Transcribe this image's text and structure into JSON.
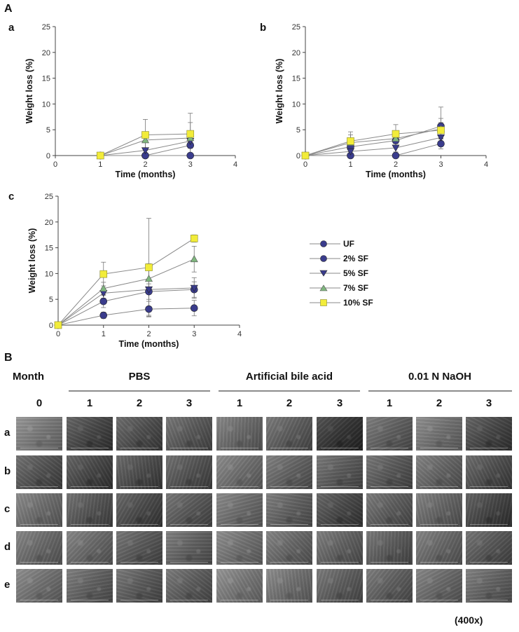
{
  "panel_A_label": "A",
  "panel_B_label": "B",
  "chart_data": [
    {
      "id": "a",
      "type": "line",
      "panel_label": "a",
      "xlabel": "Time (months)",
      "ylabel": "Weight loss (%)",
      "xlim": [
        0,
        4
      ],
      "ylim": [
        0,
        25
      ],
      "xticks": [
        "0",
        "1",
        "2",
        "3",
        "4"
      ],
      "yticks": [
        "0",
        "5",
        "10",
        "15",
        "20",
        "25"
      ],
      "x": [
        1,
        2,
        3
      ],
      "series": [
        {
          "name": "UF",
          "values": [
            0,
            0,
            0
          ],
          "err": [
            0,
            0,
            0
          ]
        },
        {
          "name": "2% SF",
          "values": [
            0,
            0,
            2.0
          ],
          "err": [
            0,
            0,
            0.6
          ]
        },
        {
          "name": "5% SF",
          "values": [
            0,
            1.0,
            2.8
          ],
          "err": [
            0,
            0.5,
            0.8
          ]
        },
        {
          "name": "7% SF",
          "values": [
            0,
            3.0,
            3.4
          ],
          "err": [
            0,
            1.5,
            3.0
          ]
        },
        {
          "name": "10% SF",
          "values": [
            0,
            4.0,
            4.2
          ],
          "err": [
            0,
            3.0,
            4.0
          ]
        }
      ]
    },
    {
      "id": "b",
      "type": "line",
      "panel_label": "b",
      "xlabel": "Time (months)",
      "ylabel": "Weight loss (%)",
      "xlim": [
        0,
        4
      ],
      "ylim": [
        0,
        25
      ],
      "xticks": [
        "0",
        "1",
        "2",
        "3",
        "4"
      ],
      "yticks": [
        "0",
        "5",
        "10",
        "15",
        "20",
        "25"
      ],
      "x": [
        0,
        1,
        2,
        3
      ],
      "series": [
        {
          "name": "UF",
          "values": [
            0,
            0,
            0,
            2.3
          ],
          "err": [
            0,
            0,
            0,
            1.0
          ]
        },
        {
          "name": "2% SF",
          "values": [
            0,
            1.7,
            2.9,
            5.7
          ],
          "err": [
            0,
            0.8,
            1.0,
            3.7
          ]
        },
        {
          "name": "5% SF",
          "values": [
            0,
            0.8,
            1.5,
            3.5
          ],
          "err": [
            0,
            0.5,
            0.8,
            1.2
          ]
        },
        {
          "name": "7% SF",
          "values": [
            0,
            2.5,
            3.3,
            5.2
          ],
          "err": [
            0,
            1.5,
            1.5,
            2.0
          ]
        },
        {
          "name": "10% SF",
          "values": [
            0,
            2.8,
            4.2,
            4.9
          ],
          "err": [
            0,
            1.8,
            1.8,
            1.5
          ]
        }
      ]
    },
    {
      "id": "c",
      "type": "line",
      "panel_label": "c",
      "xlabel": "Time (months)",
      "ylabel": "Weight loss (%)",
      "xlim": [
        0,
        4
      ],
      "ylim": [
        0,
        25
      ],
      "xticks": [
        "0",
        "1",
        "2",
        "3",
        "4"
      ],
      "yticks": [
        "0",
        "5",
        "10",
        "15",
        "20",
        "25"
      ],
      "x": [
        0,
        1,
        2,
        3
      ],
      "series": [
        {
          "name": "UF",
          "values": [
            0,
            1.9,
            3.1,
            3.3
          ],
          "err": [
            0,
            0.6,
            1.5,
            1.5
          ]
        },
        {
          "name": "2% SF",
          "values": [
            0,
            4.6,
            6.5,
            6.9
          ],
          "err": [
            0,
            1.2,
            1.5,
            1.5
          ]
        },
        {
          "name": "5% SF",
          "values": [
            0,
            6.2,
            6.9,
            7.2
          ],
          "err": [
            0,
            1.0,
            5.0,
            2.0
          ]
        },
        {
          "name": "7% SF",
          "values": [
            0,
            7.1,
            9.0,
            12.8
          ],
          "err": [
            0,
            1.2,
            2.5,
            2.5
          ]
        },
        {
          "name": "10% SF",
          "values": [
            0,
            9.9,
            11.2,
            16.8
          ],
          "err": [
            0,
            2.3,
            9.5,
            0.7
          ]
        }
      ]
    }
  ],
  "legend": [
    {
      "name": "UF",
      "marker": "circle",
      "color": "#3a3c8c"
    },
    {
      "name": "2% SF",
      "marker": "circle",
      "color": "#3a3c8c"
    },
    {
      "name": "5% SF",
      "marker": "triangle-down",
      "color": "#3a3c8c"
    },
    {
      "name": "7% SF",
      "marker": "triangle-up",
      "color": "#7fb77e"
    },
    {
      "name": "10% SF",
      "marker": "square",
      "color": "#f2ec3a"
    }
  ],
  "sem_table": {
    "month_header": "Month",
    "groups": [
      "PBS",
      "Artificial bile acid",
      "0.01 N NaOH"
    ],
    "columns": [
      "0",
      "1",
      "2",
      "3",
      "1",
      "2",
      "3",
      "1",
      "2",
      "3"
    ],
    "rows": [
      "a",
      "b",
      "c",
      "d",
      "e"
    ],
    "magnification": "(400x)"
  }
}
